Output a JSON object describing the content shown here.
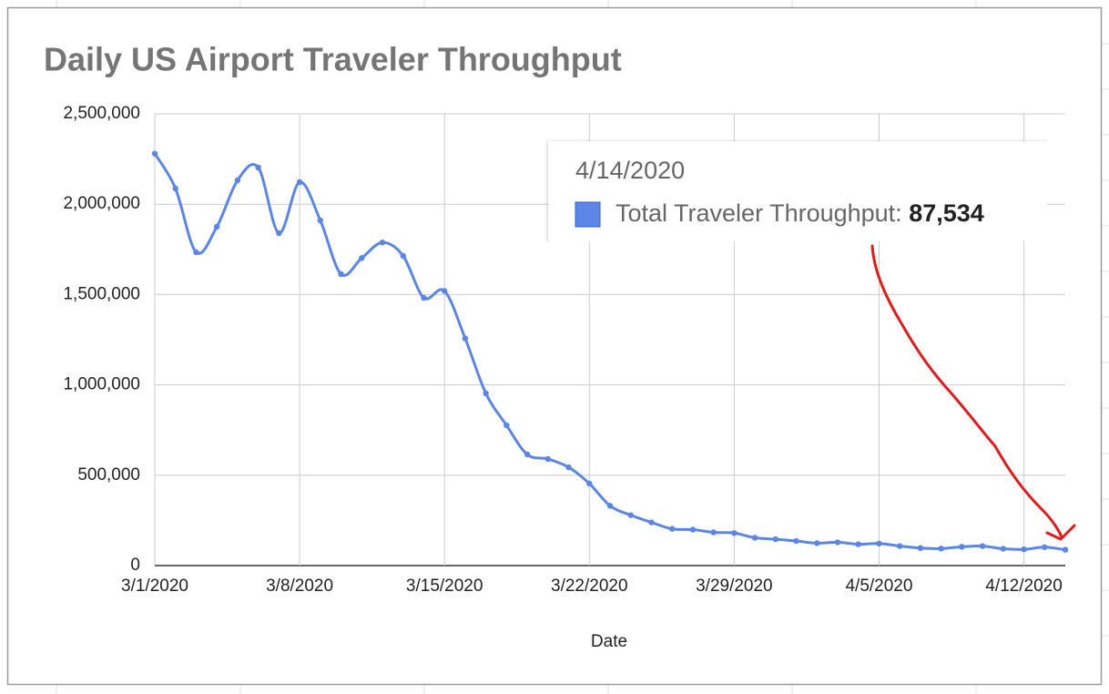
{
  "chart_data": {
    "type": "line",
    "title": "Daily US Airport Traveler Throughput",
    "x_label": "Date",
    "categories": [
      "3/1/2020",
      null,
      null,
      null,
      null,
      null,
      null,
      "3/8/2020",
      null,
      null,
      null,
      null,
      null,
      null,
      "3/15/2020",
      null,
      null,
      null,
      null,
      null,
      null,
      "3/22/2020",
      null,
      null,
      null,
      null,
      null,
      null,
      "3/29/2020",
      null,
      null,
      null,
      null,
      null,
      null,
      "4/5/2020",
      null,
      null,
      null,
      null,
      null,
      null,
      "4/12/2020",
      null,
      null
    ],
    "values": [
      2280000,
      2087000,
      1734000,
      1875000,
      2132000,
      2203000,
      1840000,
      2122000,
      1910000,
      1613000,
      1702000,
      1788000,
      1714000,
      1482000,
      1520000,
      1257000,
      953000,
      776000,
      615000,
      590000,
      544000,
      454000,
      331000,
      279000,
      239000,
      203000,
      199000,
      184000,
      180000,
      154000,
      146000,
      136000,
      124000,
      129000,
      118000,
      122000,
      108000,
      97000,
      94000,
      104000,
      108000,
      93000,
      90000,
      102000,
      87534
    ],
    "color": "#5b86e5",
    "ylim": [
      0,
      2500000
    ],
    "yticks": [
      0,
      {
        "value": 500000,
        "label": "500,000"
      },
      {
        "value": 1000000,
        "label": "1,000,000"
      },
      {
        "value": 1500000,
        "label": "1,500,000"
      },
      {
        "value": 2000000,
        "label": "2,000,000"
      },
      {
        "value": 2500000,
        "label": "2,500,000"
      }
    ],
    "grid": true,
    "tooltip": {
      "date": "4/14/2020",
      "label": "Total Traveler Throughput:",
      "value": 87534,
      "value_label": "87,534"
    }
  }
}
